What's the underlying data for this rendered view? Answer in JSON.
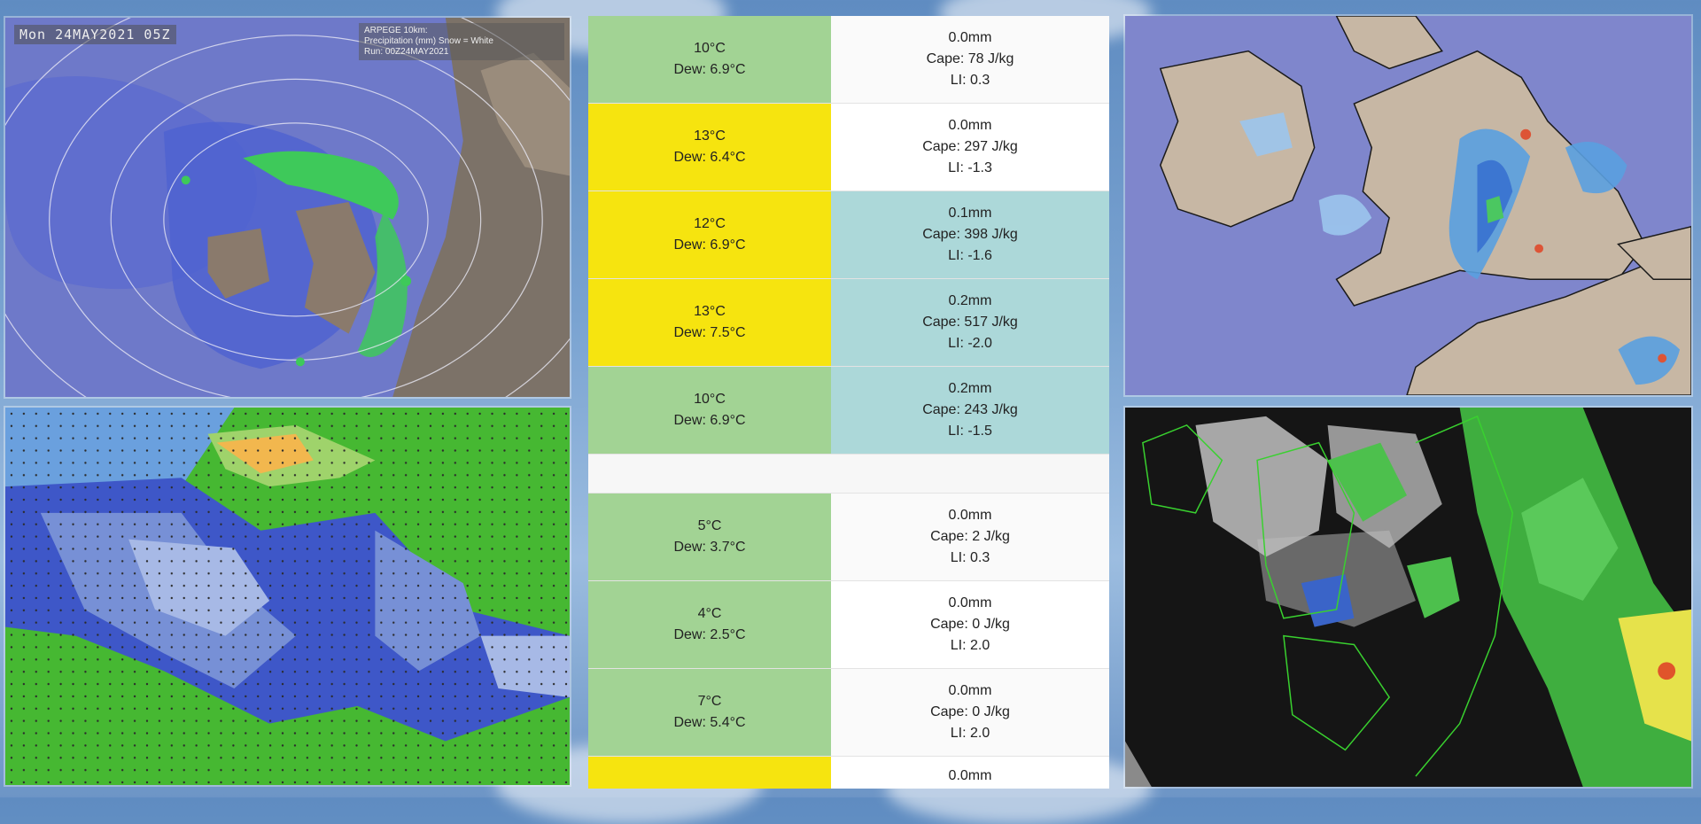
{
  "arpege": {
    "timestamp": "Mon 24MAY2021 05Z",
    "legend_line1": "ARPEGE 10km:",
    "legend_line2": "Precipitation (mm) Snow = White",
    "legend_line3": "Run: 00Z24MAY2021"
  },
  "forecast": {
    "rows": [
      {
        "temp": "10°C",
        "dew": "Dew: 6.9°C",
        "rain": "0.0mm",
        "cape": "Cape: 78 J/kg",
        "li": "LI: 0.3"
      },
      {
        "temp": "13°C",
        "dew": "Dew: 6.4°C",
        "rain": "0.0mm",
        "cape": "Cape: 297 J/kg",
        "li": "LI: -1.3"
      },
      {
        "temp": "12°C",
        "dew": "Dew: 6.9°C",
        "rain": "0.1mm",
        "cape": "Cape: 398 J/kg",
        "li": "LI: -1.6"
      },
      {
        "temp": "13°C",
        "dew": "Dew: 7.5°C",
        "rain": "0.2mm",
        "cape": "Cape: 517 J/kg",
        "li": "LI: -2.0"
      },
      {
        "temp": "10°C",
        "dew": "Dew: 6.9°C",
        "rain": "0.2mm",
        "cape": "Cape: 243 J/kg",
        "li": "LI: -1.5"
      },
      {
        "temp": "5°C",
        "dew": "Dew: 3.7°C",
        "rain": "0.0mm",
        "cape": "Cape: 2 J/kg",
        "li": "LI: 0.3"
      },
      {
        "temp": "4°C",
        "dew": "Dew: 2.5°C",
        "rain": "0.0mm",
        "cape": "Cape: 0 J/kg",
        "li": "LI: 2.0"
      },
      {
        "temp": "7°C",
        "dew": "Dew: 5.4°C",
        "rain": "0.0mm",
        "cape": "Cape: 0 J/kg",
        "li": "LI: 2.0"
      },
      {
        "temp": "",
        "dew": "",
        "rain": "0.0mm",
        "cape": "",
        "li": ""
      }
    ]
  },
  "colors": {
    "mild": "#a2d394",
    "warm": "#f6e40f",
    "wet": "#acd8d9",
    "dry": "#fafafa",
    "sea_blue": "#7f86cc",
    "land": "#c7b7a4"
  }
}
